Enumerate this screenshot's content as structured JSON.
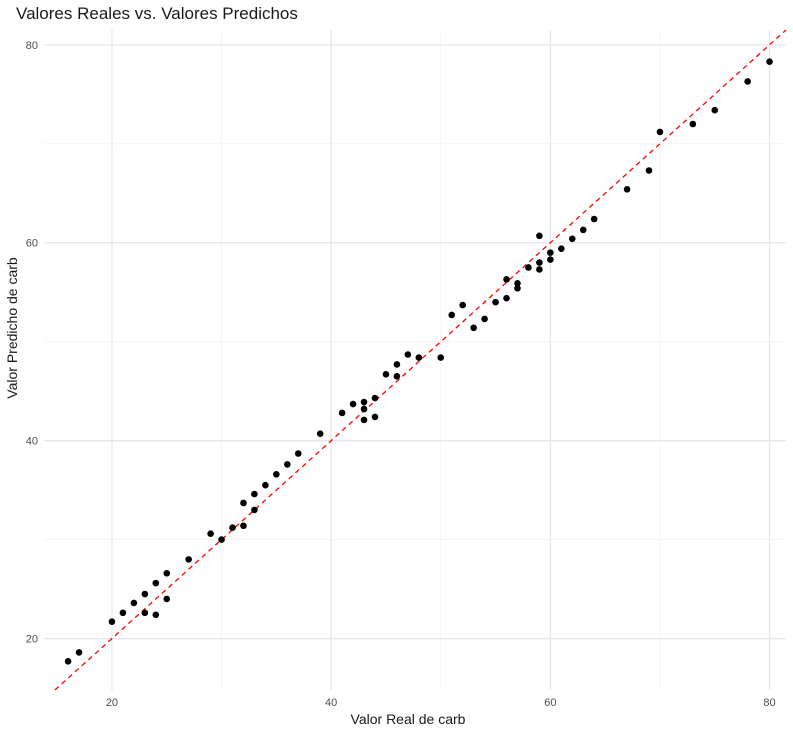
{
  "chart_data": {
    "type": "scatter",
    "title": "Valores Reales vs. Valores Predichos",
    "xlabel": "Valor Real de carb",
    "ylabel": "Valor Predicho de carb",
    "xlim": [
      13.8,
      81.5
    ],
    "ylim": [
      14.8,
      81.5
    ],
    "xticks": [
      20,
      40,
      60,
      80
    ],
    "yticks": [
      20,
      40,
      60,
      80
    ],
    "grid": true,
    "reference_line": {
      "type": "identity",
      "color": "#ff0000",
      "style": "dashed"
    },
    "point_color": "#000000",
    "points": [
      [
        16,
        17.7
      ],
      [
        17,
        18.6
      ],
      [
        20,
        21.7
      ],
      [
        21,
        22.6
      ],
      [
        22,
        23.6
      ],
      [
        23,
        22.6
      ],
      [
        23,
        24.5
      ],
      [
        24,
        22.4
      ],
      [
        24,
        25.6
      ],
      [
        25,
        24
      ],
      [
        25,
        26.6
      ],
      [
        27,
        28
      ],
      [
        29,
        30.6
      ],
      [
        30,
        30
      ],
      [
        31,
        31.2
      ],
      [
        32,
        31.4
      ],
      [
        32,
        33.7
      ],
      [
        33,
        33
      ],
      [
        33,
        34.6
      ],
      [
        34,
        35.5
      ],
      [
        35,
        36.6
      ],
      [
        36,
        37.6
      ],
      [
        37,
        38.7
      ],
      [
        39,
        40.7
      ],
      [
        41,
        42.8
      ],
      [
        42,
        43.7
      ],
      [
        43,
        42.1
      ],
      [
        43,
        43.2
      ],
      [
        43,
        43.9
      ],
      [
        44,
        42.4
      ],
      [
        44,
        44.3
      ],
      [
        45,
        46.7
      ],
      [
        46,
        46.5
      ],
      [
        46,
        47.7
      ],
      [
        47,
        48.7
      ],
      [
        48,
        48.4
      ],
      [
        50,
        48.4
      ],
      [
        51,
        52.7
      ],
      [
        52,
        53.7
      ],
      [
        53,
        51.4
      ],
      [
        54,
        52.3
      ],
      [
        55,
        54
      ],
      [
        56,
        54.4
      ],
      [
        56,
        56.3
      ],
      [
        57,
        55.4
      ],
      [
        57,
        55.9
      ],
      [
        58,
        57.5
      ],
      [
        59,
        57.3
      ],
      [
        59,
        58
      ],
      [
        59,
        60.7
      ],
      [
        60,
        58.3
      ],
      [
        60,
        59
      ],
      [
        61,
        59.4
      ],
      [
        62,
        60.4
      ],
      [
        63,
        61.3
      ],
      [
        64,
        62.4
      ],
      [
        67,
        65.4
      ],
      [
        69,
        67.3
      ],
      [
        70,
        71.2
      ],
      [
        73,
        72
      ],
      [
        75,
        73.4
      ],
      [
        78,
        76.3
      ],
      [
        80,
        78.3
      ]
    ]
  }
}
